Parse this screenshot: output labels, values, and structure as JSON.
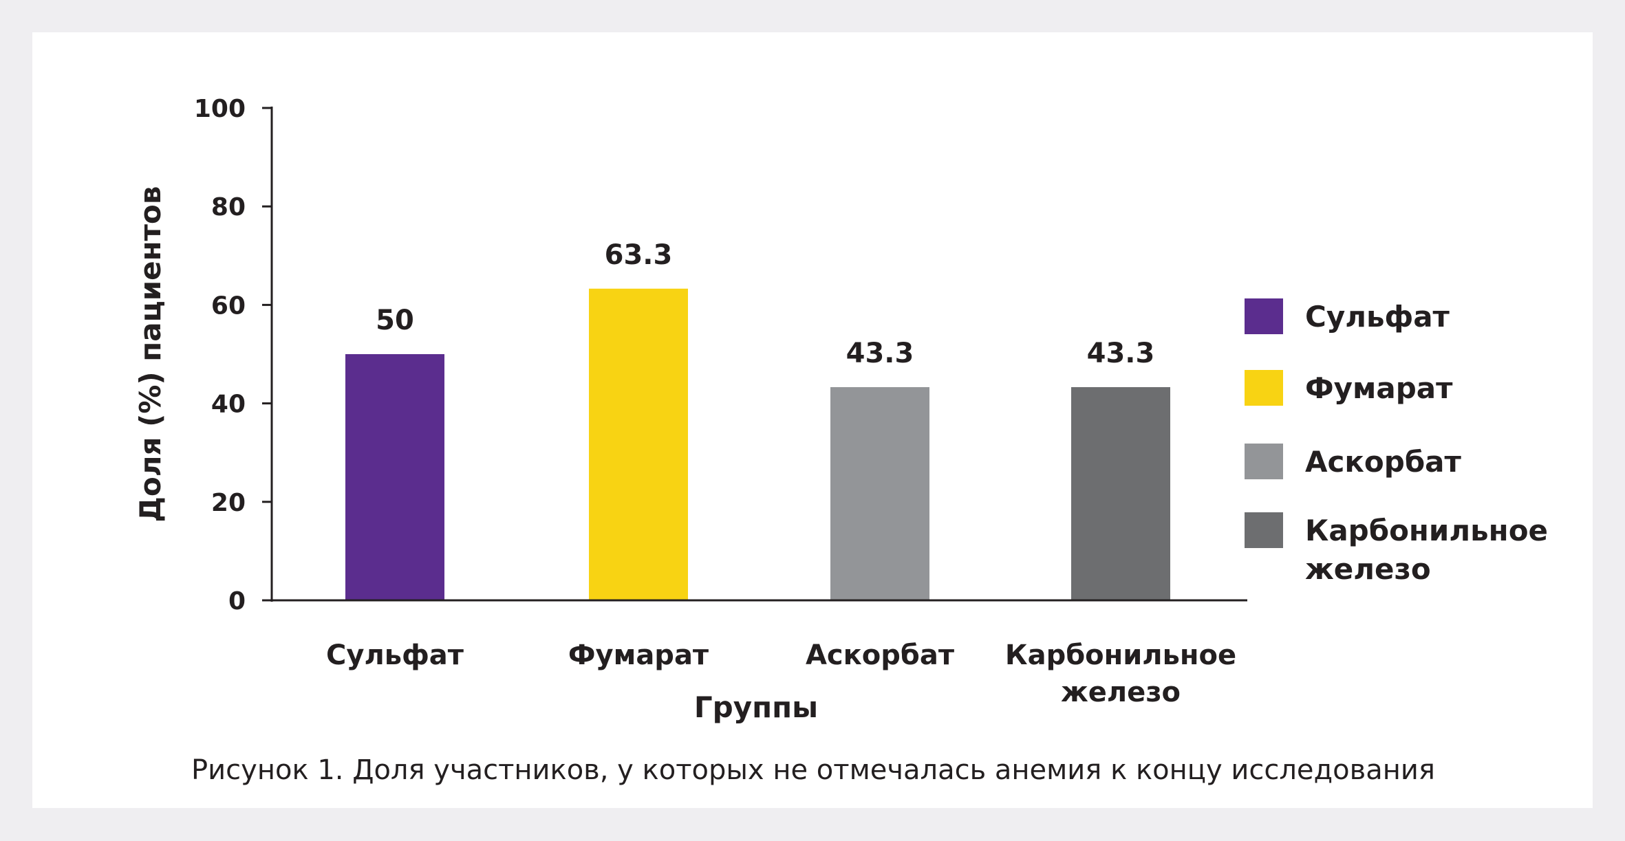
{
  "chart_data": {
    "type": "bar",
    "caption": "Рисунок 1. Доля участников, у которых не отмечалась анемия к концу исследования",
    "xlabel": "Группы",
    "ylabel": "Доля (%) пациентов",
    "ylim": [
      0,
      100
    ],
    "yticks": [
      "0",
      "20",
      "40",
      "60",
      "80",
      "100"
    ],
    "categories": [
      [
        "Сульфат"
      ],
      [
        "Фумарат"
      ],
      [
        "Аскорбат"
      ],
      [
        "Карбонильное",
        "железо"
      ]
    ],
    "values": [
      50,
      63.3,
      43.3,
      43.3
    ],
    "value_labels": [
      "50",
      "63.3",
      "43.3",
      "43.3"
    ],
    "colors": [
      "#5b2d8e",
      "#f8d313",
      "#939598",
      "#6d6e70"
    ],
    "legend": {
      "position": "right",
      "entries": [
        [
          "Сульфат"
        ],
        [
          "Фумарат"
        ],
        [
          "Аскорбат"
        ],
        [
          "Карбонильное",
          "железо"
        ]
      ]
    },
    "grid": false
  },
  "colors": {
    "background": "#efeef1",
    "panel": "#ffffff",
    "text": "#231f20"
  }
}
